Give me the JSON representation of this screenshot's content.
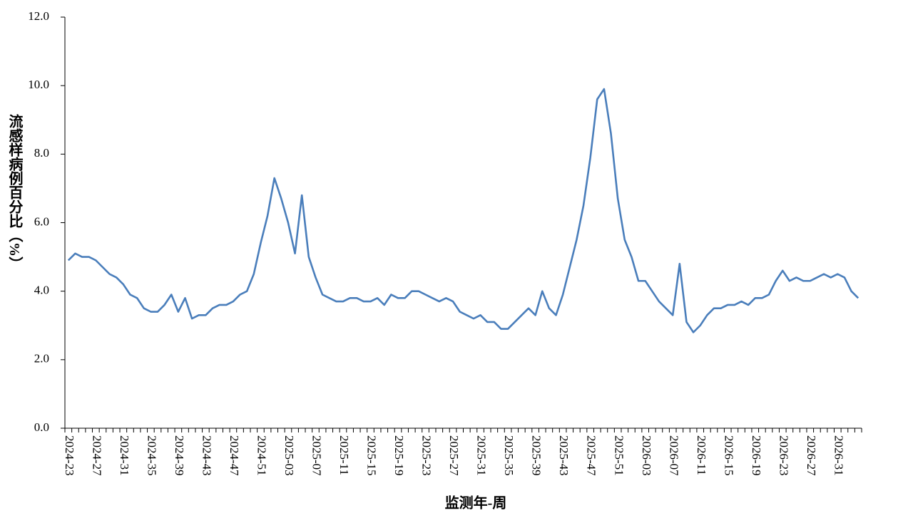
{
  "chart_data": {
    "type": "line",
    "y_label": "流感样病例百分比（%）",
    "x_label": "监测年-周",
    "categories": [
      "2024-23",
      null,
      null,
      null,
      "2024-27",
      null,
      null,
      null,
      "2024-31",
      null,
      null,
      null,
      "2024-35",
      null,
      null,
      null,
      "2024-39",
      null,
      null,
      null,
      "2024-43",
      null,
      null,
      null,
      "2024-47",
      null,
      null,
      null,
      "2024-51",
      null,
      null,
      null,
      "2025-03",
      null,
      null,
      null,
      "2025-07",
      null,
      null,
      null,
      "2025-11",
      null,
      null,
      null,
      "2025-15",
      null,
      null,
      null,
      "2025-19",
      null,
      null,
      null,
      "2025-23",
      null,
      null,
      null,
      "2025-27",
      null,
      null,
      null,
      "2025-31",
      null,
      null,
      null,
      "2025-35",
      null,
      null,
      null,
      "2025-39",
      null,
      null,
      null,
      "2025-43",
      null,
      null,
      null,
      "2025-47",
      null,
      null,
      null,
      "2025-51",
      null,
      null,
      null,
      "2026-03",
      null,
      null,
      null,
      "2026-07",
      null,
      null,
      null,
      "2026-11",
      null,
      null,
      null,
      "2026-15",
      null,
      null,
      null,
      "2026-19",
      null,
      null,
      null,
      "2026-23",
      null,
      null,
      null,
      "2026-27",
      null,
      null,
      null,
      "2026-31",
      null,
      null,
      null
    ],
    "values": [
      4.9,
      5.1,
      5.0,
      5.0,
      4.9,
      4.7,
      4.5,
      4.4,
      4.2,
      3.9,
      3.8,
      3.5,
      3.4,
      3.4,
      3.6,
      3.9,
      3.4,
      3.8,
      3.2,
      3.3,
      3.3,
      3.5,
      3.6,
      3.6,
      3.7,
      3.9,
      4.0,
      4.5,
      5.4,
      6.2,
      7.3,
      6.7,
      6.0,
      5.1,
      6.8,
      5.0,
      4.4,
      3.9,
      3.8,
      3.7,
      3.7,
      3.8,
      3.8,
      3.7,
      3.7,
      3.8,
      3.6,
      3.9,
      3.8,
      3.8,
      4.0,
      4.0,
      3.9,
      3.8,
      3.7,
      3.8,
      3.7,
      3.4,
      3.3,
      3.2,
      3.3,
      3.1,
      3.1,
      2.9,
      2.9,
      3.1,
      3.3,
      3.5,
      3.3,
      4.0,
      3.5,
      3.3,
      3.9,
      4.7,
      5.5,
      6.5,
      7.9,
      9.6,
      9.9,
      8.6,
      6.7,
      5.5,
      5.0,
      4.3,
      4.3,
      4.0,
      3.7,
      3.5,
      3.3,
      4.8,
      3.1,
      2.8,
      3.0,
      3.3,
      3.5,
      3.5,
      3.6,
      3.6,
      3.7,
      3.6,
      3.8,
      3.8,
      3.9,
      4.3,
      4.6,
      4.3,
      4.4,
      4.3,
      4.3,
      4.4,
      4.5,
      4.4,
      4.5,
      4.4,
      4.0,
      3.8
    ],
    "color": "#4a7ebb",
    "ylim": [
      0,
      12
    ],
    "yticks": [
      {
        "value": 0,
        "label": "0.0"
      },
      {
        "value": 2,
        "label": "2.0"
      },
      {
        "value": 4,
        "label": "4.0"
      },
      {
        "value": 6,
        "label": "6.0"
      },
      {
        "value": 8,
        "label": "8.0"
      },
      {
        "value": 10,
        "label": "10.0"
      },
      {
        "value": 12,
        "label": "12.0"
      }
    ]
  }
}
